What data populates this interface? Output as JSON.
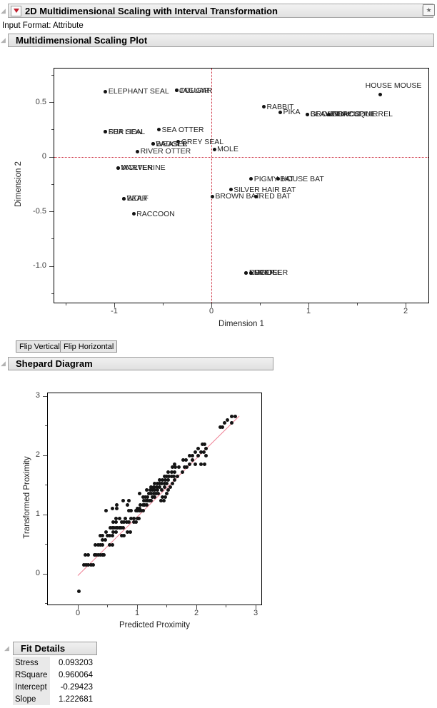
{
  "window": {
    "title": "2D Multidimensional Scaling with Interval Transformation",
    "input_format": "Input Format: Attribute"
  },
  "icons": {
    "disclosure_open": "◢",
    "red_triangle_menu": "▼",
    "bookmark_star": "★"
  },
  "sections": {
    "mds": "Multidimensional Scaling Plot",
    "shepard": "Shepard Diagram",
    "fit": "Fit Details"
  },
  "buttons": {
    "flip_vertical": "Flip Vertical",
    "flip_horizontal": "Flip Horizontal"
  },
  "colors": {
    "reference_line": "#cb2436",
    "fit_line": "#ef8094",
    "marker": "#141414"
  },
  "chart_data": [
    {
      "id": "mds",
      "type": "scatter",
      "title": "Multidimensional Scaling Plot",
      "xlabel": "Dimension 1",
      "ylabel": "Dimension 2",
      "xlim": [
        -1.63,
        2.24
      ],
      "ylim": [
        -1.34,
        0.82
      ],
      "grid": false,
      "x_ticks": [
        {
          "v": -1,
          "label": "-1"
        },
        {
          "v": 0,
          "label": "0"
        },
        {
          "v": 1,
          "label": "1"
        },
        {
          "v": 2,
          "label": "2"
        }
      ],
      "x_minor_ticks": [
        -1.5,
        -0.5,
        0.5,
        1.5
      ],
      "y_ticks": [
        {
          "v": 0.5,
          "label": "0.5"
        },
        {
          "v": 0,
          "label": "0"
        },
        {
          "v": -0.5,
          "label": "-0.5"
        },
        {
          "v": -1,
          "label": "-1.0"
        }
      ],
      "y_minor_ticks": [
        0.75,
        0.25,
        -0.25,
        -0.75,
        -1.25
      ],
      "reference_lines": {
        "x": 0,
        "y": 0
      },
      "points": [
        {
          "label": "ELEPHANT SEAL",
          "x": -1.09,
          "y": 0.6
        },
        {
          "label": "JAGUAR",
          "x": -0.36,
          "y": 0.61
        },
        {
          "label": "COUGAR",
          "x": -0.36,
          "y": 0.61
        },
        {
          "label": "HOUSE MOUSE",
          "x": 1.74,
          "y": 0.57,
          "label_offset": [
            -21,
            -19
          ]
        },
        {
          "label": "RABBIT",
          "x": 0.54,
          "y": 0.46
        },
        {
          "label": "PIKA",
          "x": 0.71,
          "y": 0.41
        },
        {
          "label": "BEAVER",
          "x": 0.99,
          "y": 0.39
        },
        {
          "label": "GROUNDHOG",
          "x": 0.99,
          "y": 0.39
        },
        {
          "label": "PORCUPINE",
          "x": 1.21,
          "y": 0.39
        },
        {
          "label": "GRAY SQUIRREL",
          "x": 1.21,
          "y": 0.39
        },
        {
          "label": "FUR SEAL",
          "x": -1.09,
          "y": 0.23
        },
        {
          "label": "SEA LION",
          "x": -1.09,
          "y": 0.23
        },
        {
          "label": "SEA OTTER",
          "x": -0.54,
          "y": 0.25
        },
        {
          "label": "GREY SEAL",
          "x": -0.34,
          "y": 0.14
        },
        {
          "label": "WEASEL",
          "x": -0.6,
          "y": 0.12
        },
        {
          "label": "BADGER",
          "x": -0.6,
          "y": 0.12
        },
        {
          "label": "MOLE",
          "x": 0.03,
          "y": 0.07
        },
        {
          "label": "RIVER OTTER",
          "x": -0.76,
          "y": 0.05
        },
        {
          "label": "MARTEN",
          "x": -0.96,
          "y": -0.1
        },
        {
          "label": "WOLVERINE",
          "x": -0.96,
          "y": -0.1
        },
        {
          "label": "PIGMY BAT",
          "x": 0.41,
          "y": -0.2
        },
        {
          "label": "HOUSE BAT",
          "x": 0.69,
          "y": -0.2
        },
        {
          "label": "SILVER HAIR BAT",
          "x": 0.2,
          "y": -0.3
        },
        {
          "label": "BROWN BAT",
          "x": 0.01,
          "y": -0.36
        },
        {
          "label": "RED BAT",
          "x": 0.46,
          "y": -0.36
        },
        {
          "label": "BEAR",
          "x": -0.9,
          "y": -0.38
        },
        {
          "label": "WOLF",
          "x": -0.9,
          "y": -0.38
        },
        {
          "label": "RACCOON",
          "x": -0.8,
          "y": -0.52
        },
        {
          "label": "REINDEER",
          "x": 0.36,
          "y": -1.06
        },
        {
          "label": "ELK",
          "x": 0.36,
          "y": -1.06
        },
        {
          "label": "DEER",
          "x": 0.41,
          "y": -1.06
        },
        {
          "label": "MOOSE",
          "x": 0.41,
          "y": -1.06
        }
      ]
    },
    {
      "id": "shepard",
      "type": "scatter",
      "title": "Shepard Diagram",
      "xlabel": "Predicted Proximity",
      "ylabel": "Transformed Proximity",
      "xlim": [
        -0.52,
        3.11
      ],
      "ylim": [
        -0.53,
        3.06
      ],
      "grid": false,
      "x_ticks": [
        {
          "v": 0,
          "label": "0"
        },
        {
          "v": 1,
          "label": "1"
        },
        {
          "v": 2,
          "label": "2"
        },
        {
          "v": 3,
          "label": "3"
        }
      ],
      "x_minor_ticks": [
        0.5,
        1.5,
        2.5
      ],
      "y_ticks": [
        {
          "v": 3,
          "label": "3"
        },
        {
          "v": 2,
          "label": "2"
        },
        {
          "v": 1,
          "label": "1"
        },
        {
          "v": 0,
          "label": "0"
        }
      ],
      "y_minor_ticks": [
        2.5,
        1.5,
        0.5,
        -0.5
      ],
      "fit_line": {
        "x1": 0.0,
        "y1": -0.02,
        "x2": 2.72,
        "y2": 2.67
      },
      "point_bands": [
        {
          "y": -0.29,
          "x": [
            0.02
          ]
        },
        {
          "y": 0.15,
          "x": [
            0.1,
            0.14,
            0.18,
            0.22,
            0.26
          ]
        },
        {
          "y": 0.32,
          "x": [
            0.13,
            0.17,
            0.28,
            0.31,
            0.34,
            0.38,
            0.41,
            0.44
          ]
        },
        {
          "y": 0.49,
          "x": [
            0.3,
            0.34,
            0.38,
            0.42,
            0.54,
            0.58
          ]
        },
        {
          "y": 0.57,
          "x": [
            0.42,
            0.46
          ]
        },
        {
          "y": 0.65,
          "x": [
            0.38,
            0.42,
            0.5,
            0.54,
            0.58,
            0.74,
            0.78
          ]
        },
        {
          "y": 0.71,
          "x": [
            0.48,
            0.6,
            0.64,
            0.84,
            0.88
          ]
        },
        {
          "y": 0.78,
          "x": [
            0.55,
            0.58,
            0.61,
            0.64,
            0.67,
            0.7,
            0.73,
            0.76
          ]
        },
        {
          "y": 0.87,
          "x": [
            0.6,
            0.64,
            0.74,
            0.78,
            0.82,
            0.86,
            0.94,
            0.98
          ]
        },
        {
          "y": 0.93,
          "x": [
            0.64,
            0.71,
            0.8,
            0.9,
            0.94,
            1.0,
            1.03
          ]
        },
        {
          "y": 1.07,
          "x": [
            0.48,
            0.86,
            0.9,
            0.98,
            1.01,
            1.04,
            1.07,
            1.1
          ]
        },
        {
          "y": 1.1,
          "x": [
            0.58,
            0.66,
            1.0,
            1.04
          ]
        },
        {
          "y": 1.16,
          "x": [
            0.66,
            0.84,
            1.06,
            1.1,
            1.13,
            1.16
          ]
        },
        {
          "y": 1.24,
          "x": [
            0.76,
            0.86,
            1.12,
            1.15,
            1.18,
            1.21,
            1.24,
            1.4,
            1.45
          ]
        },
        {
          "y": 1.3,
          "x": [
            1.1,
            1.14,
            1.18,
            1.26,
            1.3,
            1.43,
            1.48
          ]
        },
        {
          "y": 1.35,
          "x": [
            1.04,
            1.2,
            1.24,
            1.28,
            1.32,
            1.36,
            1.5
          ]
        },
        {
          "y": 1.41,
          "x": [
            1.16,
            1.22,
            1.26,
            1.3,
            1.34,
            1.42,
            1.53
          ]
        },
        {
          "y": 1.46,
          "x": [
            1.24,
            1.28,
            1.33,
            1.38,
            1.46,
            1.56
          ]
        },
        {
          "y": 1.52,
          "x": [
            1.3,
            1.34,
            1.38,
            1.42,
            1.46,
            1.5,
            1.6
          ]
        },
        {
          "y": 1.58,
          "x": [
            1.38,
            1.43,
            1.48,
            1.53,
            1.63
          ]
        },
        {
          "y": 1.65,
          "x": [
            1.46,
            1.5,
            1.54,
            1.58,
            1.62,
            1.68
          ]
        },
        {
          "y": 1.72,
          "x": [
            1.53,
            1.58,
            1.63,
            1.76
          ]
        },
        {
          "y": 1.8,
          "x": [
            1.6,
            1.65,
            1.7,
            1.8,
            1.84
          ]
        },
        {
          "y": 1.85,
          "x": [
            1.63,
            1.88,
            1.98,
            2.08,
            2.14
          ]
        },
        {
          "y": 1.92,
          "x": [
            1.78,
            1.83,
            1.93
          ]
        },
        {
          "y": 2.0,
          "x": [
            1.88,
            1.93,
            2.03,
            2.16
          ]
        },
        {
          "y": 2.06,
          "x": [
            1.98,
            2.08,
            2.13
          ]
        },
        {
          "y": 2.12,
          "x": [
            2.03,
            2.16
          ]
        },
        {
          "y": 2.19,
          "x": [
            2.1,
            2.14
          ]
        },
        {
          "y": 2.48,
          "x": [
            2.4,
            2.44
          ]
        },
        {
          "y": 2.55,
          "x": [
            2.48,
            2.6
          ]
        },
        {
          "y": 2.6,
          "x": [
            2.53
          ]
        },
        {
          "y": 2.66,
          "x": [
            2.6,
            2.66
          ]
        }
      ]
    }
  ],
  "fit_details": {
    "rows": [
      {
        "label": "Stress",
        "value": "0.093203"
      },
      {
        "label": "RSquare",
        "value": "0.960064"
      },
      {
        "label": "Intercept",
        "value": "-0.29423"
      },
      {
        "label": "Slope",
        "value": "1.222681"
      }
    ]
  }
}
